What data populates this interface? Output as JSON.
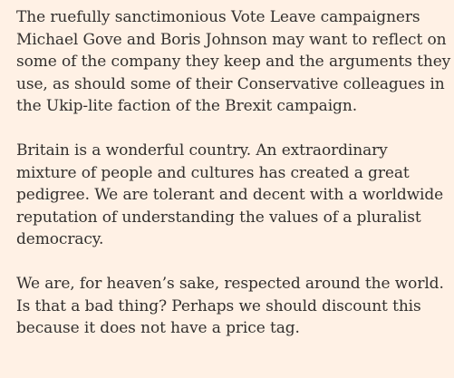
{
  "article": {
    "paragraphs": [
      {
        "lines": [
          "The ruefully sanctimonious Vote Leave campaigners",
          "Michael Gove and Boris Johnson may want to reflect on",
          "some of the company they keep and the arguments they",
          "use, as should some of their Conservative colleagues in",
          "the Ukip-lite faction of the Brexit campaign."
        ]
      },
      {
        "lines": [
          "Britain is a wonderful country. An extraordinary",
          "mixture of people and cultures has created a great",
          "pedigree. We are tolerant and decent with a worldwide",
          "reputation of understanding the values of a pluralist",
          "democracy."
        ]
      },
      {
        "lines": [
          "We are, for heaven’s sake, respected around the world.",
          "Is that a bad thing? Perhaps we should discount this",
          "because it does not have a price tag."
        ]
      }
    ]
  }
}
